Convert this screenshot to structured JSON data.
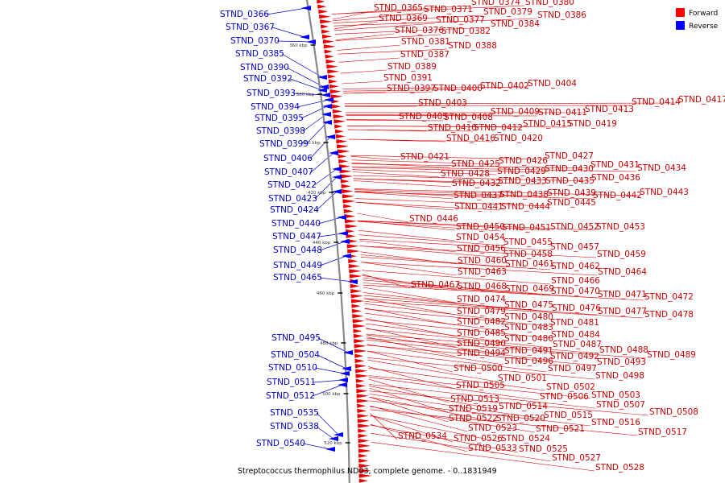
{
  "caption": "Streptococcus thermophilus ND03, complete genome. - 0..1831949",
  "legend": [
    {
      "label": "Forward",
      "color": "#ff0000"
    },
    {
      "label": "Reverse",
      "color": "#0000ff"
    }
  ],
  "ticks": [
    "360 kbp",
    "380 kbp",
    "400 kbp",
    "420 kbp",
    "440 kbp",
    "460 kbp",
    "480 kbp",
    "500 kbp",
    "520 kbp"
  ],
  "reverse_labels": [
    "STND_0366",
    "STND_0367",
    "STND_0370",
    "STND_0385",
    "STND_0390",
    "STND_0392",
    "STND_0393",
    "STND_0394",
    "STND_0395",
    "STND_0398",
    "STND_0399",
    "STND_0406",
    "STND_0407",
    "STND_0422",
    "STND_0423",
    "STND_0424",
    "STND_0440",
    "STND_0447",
    "STND_0448",
    "STND_0449",
    "STND_0465",
    "STND_0495",
    "STND_0504",
    "STND_0510",
    "STND_0511",
    "STND_0512",
    "STND_0535",
    "STND_0538",
    "STND_0540"
  ],
  "forward_labels": [
    "STND_0365",
    "STND_0371",
    "STND_0374",
    "STND_0380",
    "STND_0369",
    "STND_0377",
    "STND_0379",
    "STND_0386",
    "STND_0376",
    "STND_0382",
    "STND_0384",
    "STND_0381",
    "STND_0388",
    "STND_0387",
    "STND_0389",
    "STND_0391",
    "STND_0397",
    "STND_0400",
    "STND_0402",
    "STND_0404",
    "STND_0403",
    "STND_0409",
    "STND_0411",
    "STND_0413",
    "STND_0414",
    "STND_0417",
    "STND_0405",
    "STND_0408",
    "STND_0415",
    "STND_0419",
    "STND_0410",
    "STND_0412",
    "STND_0416",
    "STND_0420",
    "STND_0421",
    "STND_0425",
    "STND_0426",
    "STND_0427",
    "STND_0431",
    "STND_0434",
    "STND_0428",
    "STND_0429",
    "STND_0430",
    "STND_0436",
    "STND_0432",
    "STND_0433",
    "STND_0435",
    "STND_0437",
    "STND_0438",
    "STND_0439",
    "STND_0442",
    "STND_0443",
    "STND_0441",
    "STND_0444",
    "STND_0445",
    "STND_0446",
    "STND_0450",
    "STND_0451",
    "STND_0452",
    "STND_0453",
    "STND_0454",
    "STND_0455",
    "STND_0457",
    "STND_0456",
    "STND_0458",
    "STND_0459",
    "STND_0460",
    "STND_0461",
    "STND_0462",
    "STND_0463",
    "STND_0464",
    "STND_0466",
    "STND_0467",
    "STND_0468",
    "STND_0469",
    "STND_0470",
    "STND_0471",
    "STND_0472",
    "STND_0474",
    "STND_0475",
    "STND_0476",
    "STND_0477",
    "STND_0478",
    "STND_0479",
    "STND_0480",
    "STND_0482",
    "STND_0481",
    "STND_0483",
    "STND_0484",
    "STND_0485",
    "STND_0486",
    "STND_0487",
    "STND_0490",
    "STND_0491",
    "STND_0488",
    "STND_0489",
    "STND_0494",
    "STND_0492",
    "STND_0493",
    "STND_0496",
    "STND_0497",
    "STND_0500",
    "STND_0498",
    "STND_0501",
    "STND_0505",
    "STND_0502",
    "STND_0506",
    "STND_0503",
    "STND_0507",
    "STND_0513",
    "STND_0514",
    "STND_0508",
    "STND_0519",
    "STND_0515",
    "STND_0522",
    "STND_0520",
    "STND_0516",
    "STND_0523",
    "STND_0521",
    "STND_0517",
    "STND_0534",
    "STND_0526",
    "STND_0524",
    "STND_0533",
    "STND_0525",
    "STND_0527",
    "STND_0528"
  ]
}
